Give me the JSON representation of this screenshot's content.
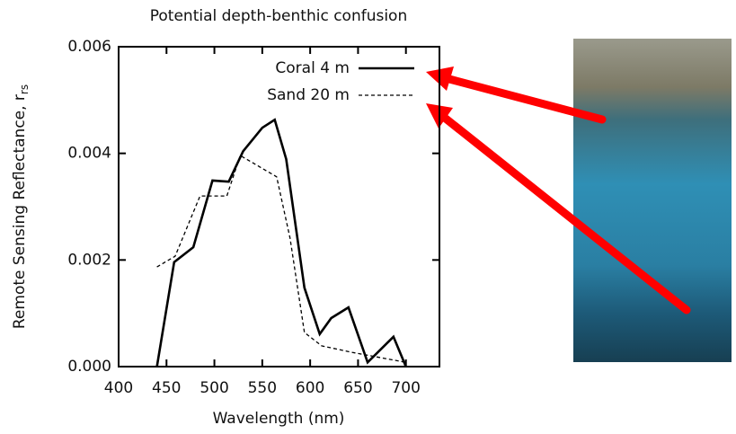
{
  "chart_data": {
    "type": "line",
    "title": "Potential depth-benthic confusion",
    "x_label": "Wavelength (nm)",
    "y_label": "Remote Sensing Reflectance, r",
    "y_label_subscript": "rs",
    "xlim": [
      400,
      735
    ],
    "xticks": [
      400,
      450,
      500,
      550,
      600,
      650,
      700
    ],
    "ylim": [
      0,
      0.006
    ],
    "yticks": [
      {
        "value": 0,
        "label": "0.000"
      },
      0.002,
      0.004,
      0.006
    ],
    "legend": "top-right",
    "series": [
      {
        "name": "Coral 4 m",
        "color": "#000000",
        "dash": false,
        "x": [
          440,
          458,
          478,
          498,
          515,
          530,
          550,
          563,
          575,
          594,
          610,
          622,
          640,
          660,
          687,
          700
        ],
        "values": [
          0,
          0.00196,
          0.00224,
          0.00349,
          0.00347,
          0.00404,
          0.00448,
          0.00463,
          0.00389,
          0.00148,
          0.00061,
          0.00091,
          0.00111,
          8e-05,
          0.00056,
          0
        ]
      },
      {
        "name": "Sand 20 m",
        "color": "#000000",
        "dash": true,
        "x": [
          440,
          459,
          485,
          500,
          513,
          527,
          565,
          579,
          594,
          612,
          643,
          700
        ],
        "values": [
          0.00187,
          0.00207,
          0.0032,
          0.0032,
          0.0032,
          0.00396,
          0.00356,
          0.00241,
          0.00064,
          0.00039,
          0.00027,
          8e-05
        ]
      }
    ]
  }
}
